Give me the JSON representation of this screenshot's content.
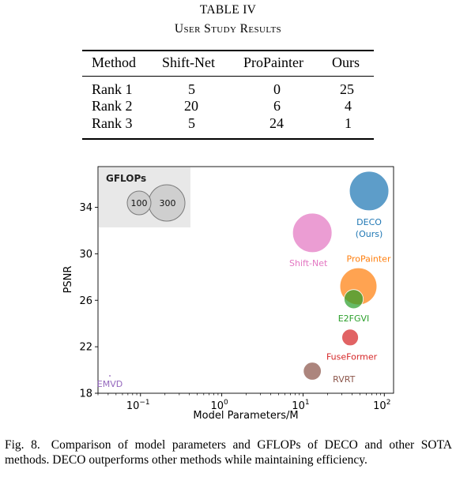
{
  "table": {
    "title": "TABLE IV",
    "subtitle": "User Study Results",
    "headers": [
      "Method",
      "Shift-Net",
      "ProPainter",
      "Ours"
    ],
    "rows": [
      [
        "Rank 1",
        "5",
        "0",
        "25"
      ],
      [
        "Rank 2",
        "20",
        "6",
        "4"
      ],
      [
        "Rank 3",
        "5",
        "24",
        "1"
      ]
    ]
  },
  "chart_data": {
    "type": "scatter",
    "xlabel": "Model Parameters/M",
    "ylabel": "PSNR",
    "xscale": "log",
    "xlim": [
      0.03,
      130
    ],
    "ylim": [
      18,
      37.5
    ],
    "xticks": [
      {
        "value": 0.1,
        "base": "10",
        "exp": "−1"
      },
      {
        "value": 1,
        "base": "10",
        "exp": "0"
      },
      {
        "value": 10,
        "base": "10",
        "exp": "1"
      },
      {
        "value": 100,
        "base": "10",
        "exp": "2"
      }
    ],
    "yticks": [
      18,
      22,
      26,
      30,
      34
    ],
    "legend": {
      "title": "GFLOPs",
      "placement": "top-left",
      "entries": [
        {
          "label": "100",
          "value": 100
        },
        {
          "label": "300",
          "value": 300
        }
      ]
    },
    "points": [
      {
        "name": "EMVD",
        "label_lines": [
          "EMVD"
        ],
        "x": 0.042,
        "y": 19.5,
        "gflops": 0.5,
        "color": "#9467bd"
      },
      {
        "name": "RVRT",
        "label_lines": [
          "RVRT"
        ],
        "x": 13,
        "y": 19.9,
        "gflops": 70,
        "color": "#8c564b"
      },
      {
        "name": "FuseFormer",
        "label_lines": [
          "FuseFormer"
        ],
        "x": 38,
        "y": 22.8,
        "gflops": 60,
        "color": "#d62728"
      },
      {
        "name": "E2FGVI",
        "label_lines": [
          "E2FGVI"
        ],
        "x": 42,
        "y": 26.1,
        "gflops": 80,
        "color": "#2ca02c"
      },
      {
        "name": "ProPainter",
        "label_lines": [
          "ProPainter"
        ],
        "x": 48,
        "y": 27.2,
        "gflops": 300,
        "color": "#ff7f0e"
      },
      {
        "name": "Shift-Net",
        "label_lines": [
          "Shift-Net"
        ],
        "x": 13,
        "y": 31.8,
        "gflops": 340,
        "color": "#e377c2"
      },
      {
        "name": "DECO",
        "label_lines": [
          "DECO",
          "(Ours)"
        ],
        "x": 65,
        "y": 35.4,
        "gflops": 340,
        "color": "#1f77b4"
      }
    ]
  },
  "caption": {
    "label": "Fig. 8.",
    "text": "Comparison of model parameters and GFLOPs of DECO and other SOTA methods. DECO outperforms other methods while maintaining efficiency."
  }
}
